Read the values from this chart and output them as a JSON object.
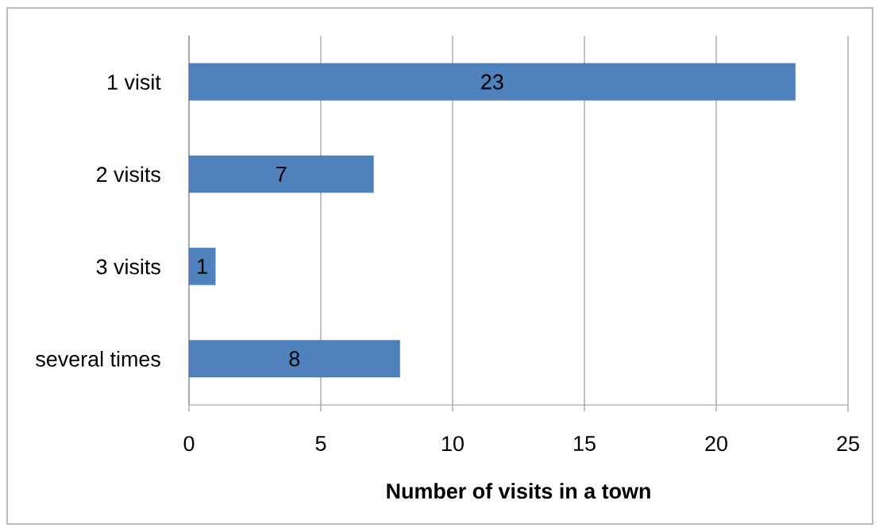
{
  "chart_data": {
    "type": "bar",
    "orientation": "horizontal",
    "xlabel": "Number of visits in a town",
    "categories": [
      "1 visit",
      "2 visits",
      "3 visits",
      "several times"
    ],
    "values": [
      23,
      7,
      1,
      8
    ],
    "color": "#4f81bd",
    "xlim": [
      0,
      25
    ],
    "xticks": [
      0,
      5,
      10,
      15,
      20,
      25
    ],
    "grid": "x",
    "data_labels": true
  }
}
